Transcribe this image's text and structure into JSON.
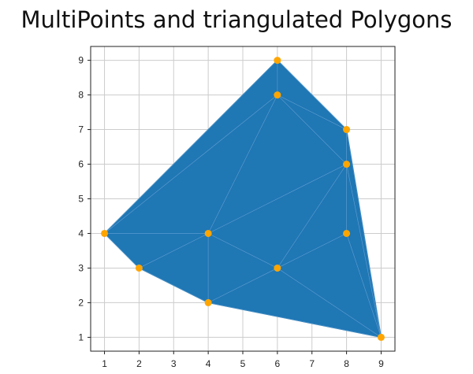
{
  "chart_data": {
    "type": "scatter",
    "title": "MultiPoints and triangulated Polygons",
    "xlabel": "",
    "ylabel": "",
    "xlim": [
      0.6,
      9.4
    ],
    "ylim": [
      0.6,
      9.4
    ],
    "x_ticks": [
      "1",
      "2",
      "3",
      "4",
      "5",
      "6",
      "7",
      "8",
      "9"
    ],
    "y_ticks": [
      "1",
      "2",
      "3",
      "4",
      "5",
      "6",
      "7",
      "8",
      "9"
    ],
    "grid": true,
    "legend": "none",
    "colors": {
      "fill": "#1f77b4",
      "point": "#ffa500",
      "grid": "#cccccc",
      "edge": "#5b9bd0"
    },
    "points": [
      {
        "x": 1,
        "y": 4
      },
      {
        "x": 2,
        "y": 3
      },
      {
        "x": 4,
        "y": 2
      },
      {
        "x": 4,
        "y": 4
      },
      {
        "x": 6,
        "y": 3
      },
      {
        "x": 6,
        "y": 8
      },
      {
        "x": 6,
        "y": 9
      },
      {
        "x": 8,
        "y": 4
      },
      {
        "x": 8,
        "y": 6
      },
      {
        "x": 8,
        "y": 7
      },
      {
        "x": 9,
        "y": 1
      }
    ],
    "triangles": [
      [
        [
          1,
          4
        ],
        [
          2,
          3
        ],
        [
          4,
          4
        ]
      ],
      [
        [
          2,
          3
        ],
        [
          4,
          2
        ],
        [
          4,
          4
        ]
      ],
      [
        [
          4,
          2
        ],
        [
          6,
          3
        ],
        [
          4,
          4
        ]
      ],
      [
        [
          4,
          2
        ],
        [
          9,
          1
        ],
        [
          6,
          3
        ]
      ],
      [
        [
          6,
          3
        ],
        [
          9,
          1
        ],
        [
          8,
          4
        ]
      ],
      [
        [
          8,
          4
        ],
        [
          9,
          1
        ],
        [
          8,
          6
        ]
      ],
      [
        [
          6,
          3
        ],
        [
          8,
          4
        ],
        [
          8,
          6
        ]
      ],
      [
        [
          4,
          4
        ],
        [
          6,
          3
        ],
        [
          8,
          6
        ]
      ],
      [
        [
          1,
          4
        ],
        [
          4,
          4
        ],
        [
          6,
          8
        ]
      ],
      [
        [
          4,
          4
        ],
        [
          8,
          6
        ],
        [
          6,
          8
        ]
      ],
      [
        [
          6,
          8
        ],
        [
          8,
          6
        ],
        [
          8,
          7
        ]
      ],
      [
        [
          6,
          8
        ],
        [
          8,
          7
        ],
        [
          6,
          9
        ]
      ],
      [
        [
          1,
          4
        ],
        [
          6,
          8
        ],
        [
          6,
          9
        ]
      ],
      [
        [
          8,
          6
        ],
        [
          9,
          1
        ],
        [
          8,
          7
        ]
      ]
    ]
  }
}
